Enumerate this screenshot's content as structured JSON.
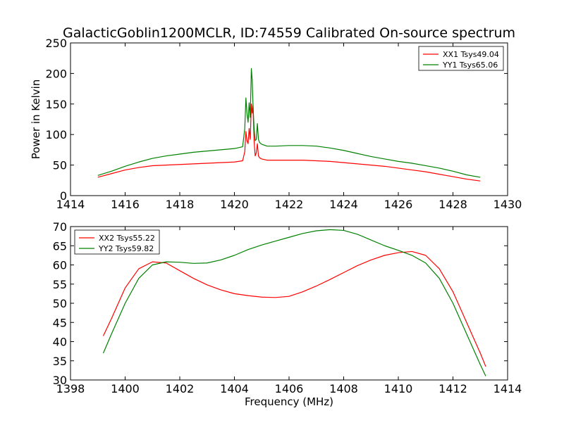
{
  "chart_data": [
    {
      "type": "line",
      "title": "GalacticGoblin1200MCLR, ID:74559 Calibrated On-source spectrum",
      "xlabel": "",
      "ylabel": "Power in Kelvin",
      "xlim": [
        1414,
        1430
      ],
      "ylim": [
        0,
        250
      ],
      "xticks": [
        1414,
        1416,
        1418,
        1420,
        1422,
        1424,
        1426,
        1428,
        1430
      ],
      "yticks": [
        0,
        50,
        100,
        150,
        200,
        250
      ],
      "grid": false,
      "legend_position": "top-right",
      "series": [
        {
          "name": "XX1 Tsys49.04",
          "color": "#ff0000",
          "x": [
            1415.0,
            1415.5,
            1416.0,
            1416.5,
            1417.0,
            1417.5,
            1418.0,
            1418.5,
            1419.0,
            1419.5,
            1420.0,
            1420.3,
            1420.38,
            1420.42,
            1420.46,
            1420.5,
            1420.54,
            1420.58,
            1420.62,
            1420.65,
            1420.68,
            1420.72,
            1420.76,
            1420.8,
            1420.84,
            1420.88,
            1420.92,
            1421.0,
            1421.2,
            1421.5,
            1422.0,
            1422.5,
            1423.0,
            1423.5,
            1424.0,
            1424.5,
            1425.0,
            1425.5,
            1426.0,
            1426.5,
            1427.0,
            1427.5,
            1428.0,
            1428.5,
            1429.0
          ],
          "y": [
            30,
            36,
            42,
            46,
            49,
            50,
            51,
            52,
            53,
            54,
            55,
            57,
            72,
            105,
            90,
            85,
            110,
            92,
            150,
            135,
            148,
            90,
            65,
            70,
            85,
            65,
            62,
            60,
            58,
            58,
            58,
            58,
            57,
            56,
            54,
            52,
            50,
            48,
            45,
            42,
            39,
            35,
            31,
            27,
            24
          ]
        },
        {
          "name": "YY1 Tsys65.06",
          "color": "#008000",
          "x": [
            1415.0,
            1415.5,
            1416.0,
            1416.5,
            1417.0,
            1417.5,
            1418.0,
            1418.5,
            1419.0,
            1419.5,
            1420.0,
            1420.3,
            1420.38,
            1420.42,
            1420.46,
            1420.5,
            1420.54,
            1420.58,
            1420.62,
            1420.65,
            1420.68,
            1420.72,
            1420.76,
            1420.8,
            1420.84,
            1420.88,
            1420.92,
            1421.0,
            1421.2,
            1421.5,
            1422.0,
            1422.5,
            1423.0,
            1423.5,
            1424.0,
            1424.5,
            1425.0,
            1425.5,
            1426.0,
            1426.5,
            1427.0,
            1427.5,
            1428.0,
            1428.5,
            1429.0
          ],
          "y": [
            33,
            40,
            48,
            55,
            61,
            65,
            68,
            71,
            73,
            75,
            77,
            80,
            110,
            160,
            135,
            120,
            152,
            128,
            208,
            190,
            150,
            110,
            90,
            92,
            118,
            92,
            87,
            84,
            81,
            81,
            82,
            82,
            81,
            78,
            74,
            69,
            64,
            60,
            56,
            53,
            49,
            45,
            40,
            34,
            30
          ]
        }
      ]
    },
    {
      "type": "line",
      "title": "",
      "xlabel": "Frequency (MHz)",
      "ylabel": "",
      "xlim": [
        1398,
        1414
      ],
      "ylim": [
        30,
        70
      ],
      "xticks": [
        1398,
        1400,
        1402,
        1404,
        1406,
        1408,
        1410,
        1412,
        1414
      ],
      "yticks": [
        30,
        35,
        40,
        45,
        50,
        55,
        60,
        65,
        70
      ],
      "grid": false,
      "legend_position": "top-left",
      "series": [
        {
          "name": "XX2 Tsys55.22",
          "color": "#ff0000",
          "x": [
            1399.2,
            1399.5,
            1400.0,
            1400.5,
            1401.0,
            1401.5,
            1402.0,
            1402.5,
            1403.0,
            1403.5,
            1404.0,
            1404.5,
            1405.0,
            1405.5,
            1406.0,
            1406.5,
            1407.0,
            1407.5,
            1408.0,
            1408.5,
            1409.0,
            1409.5,
            1410.0,
            1410.5,
            1411.0,
            1411.5,
            1412.0,
            1412.5,
            1413.0,
            1413.2
          ],
          "y": [
            41.5,
            46,
            54,
            59,
            60.8,
            60.5,
            58.5,
            56.5,
            54.8,
            53.5,
            52.5,
            52,
            51.6,
            51.5,
            51.8,
            53,
            54.5,
            56.2,
            58,
            59.8,
            61.3,
            62.5,
            63.2,
            63.5,
            62.5,
            59,
            53,
            45,
            37,
            33.5
          ]
        },
        {
          "name": "YY2 Tsys59.82",
          "color": "#008000",
          "x": [
            1399.2,
            1399.5,
            1400.0,
            1400.5,
            1401.0,
            1401.5,
            1402.0,
            1402.5,
            1403.0,
            1403.5,
            1404.0,
            1404.5,
            1405.0,
            1405.5,
            1406.0,
            1406.5,
            1407.0,
            1407.5,
            1408.0,
            1408.5,
            1409.0,
            1409.5,
            1410.0,
            1410.5,
            1411.0,
            1411.5,
            1412.0,
            1412.5,
            1413.0,
            1413.2
          ],
          "y": [
            37,
            42,
            50,
            56.5,
            60,
            60.8,
            60.7,
            60.4,
            60.5,
            61.3,
            62.5,
            64,
            65.2,
            66.2,
            67.2,
            68.2,
            68.9,
            69.2,
            69,
            68,
            66.5,
            65,
            63.8,
            62.5,
            60.5,
            56.5,
            50,
            42,
            34,
            31
          ]
        }
      ]
    }
  ]
}
